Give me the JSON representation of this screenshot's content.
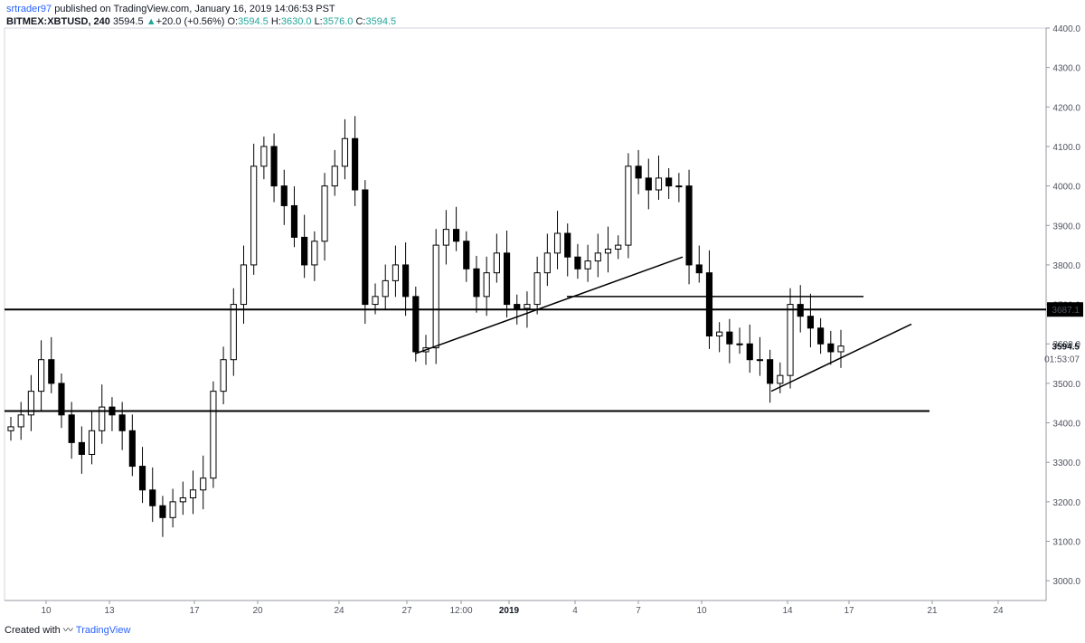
{
  "header": {
    "author": "srtrader97",
    "published_text": "published on TradingView.com, January 16, 2019 14:06:53 PST"
  },
  "legend": {
    "symbol": "BITMEX:XBTUSD, 240",
    "last": "3594.5",
    "change": "+20.0 (+0.56%)",
    "o_label": "O:",
    "o": "3594.5",
    "h_label": "H:",
    "h": "3630.0",
    "l_label": "L:",
    "l": "3576.0",
    "c_label": "C:",
    "c": "3594.5"
  },
  "footer": {
    "created_with": "Created with",
    "brand": "TradingView"
  },
  "price_axis": {
    "ticks": [
      "4400.0",
      "4300.0",
      "4200.0",
      "4100.0",
      "4000.0",
      "3900.0",
      "3800.0",
      "3700.0",
      "3600.0",
      "3500.0",
      "3400.0",
      "3300.0",
      "3200.0",
      "3100.0",
      "3000.0"
    ],
    "highlight_label": "3687.1",
    "last_price_label": "3594.5",
    "countdown": "01:53:07"
  },
  "colors": {
    "line": "#000000",
    "axis_text": "#50535e",
    "link": "#2962ff",
    "up": "#26a69a"
  },
  "chart_data": {
    "type": "candlestick",
    "title": "BITMEX:XBTUSD, 240",
    "ylim": [
      2950,
      4400
    ],
    "x_ticks": [
      "10",
      "13",
      "17",
      "20",
      "24",
      "27",
      "12:00",
      "2019",
      "4",
      "7",
      "10",
      "14",
      "17",
      "21",
      "24"
    ],
    "closes": [
      3390,
      3420,
      3480,
      3560,
      3500,
      3420,
      3350,
      3320,
      3380,
      3440,
      3420,
      3380,
      3290,
      3230,
      3190,
      3160,
      3200,
      3210,
      3230,
      3260,
      3480,
      3560,
      3700,
      3800,
      4050,
      4100,
      4000,
      3950,
      3870,
      3800,
      3860,
      4000,
      4050,
      4120,
      3990,
      3700,
      3720,
      3760,
      3800,
      3720,
      3580,
      3590,
      3850,
      3890,
      3860,
      3790,
      3720,
      3780,
      3830,
      3700,
      3690,
      3700,
      3780,
      3830,
      3880,
      3820,
      3790,
      3810,
      3830,
      3840,
      3850,
      4050,
      4020,
      3990,
      4020,
      4000,
      4000,
      3800,
      3780,
      3620,
      3630,
      3600,
      3600,
      3560,
      3560,
      3500,
      3520,
      3700,
      3670,
      3640,
      3600,
      3580,
      3594.5
    ],
    "support_line": 3430,
    "resistance_line": 3687.1,
    "upper_line": 3720,
    "trendlines": [
      {
        "from": [
          27,
          3575
        ],
        "to": [
          9,
          3820
        ]
      },
      {
        "from": [
          13,
          3480
        ],
        "to": [
          20,
          3650
        ]
      }
    ]
  }
}
